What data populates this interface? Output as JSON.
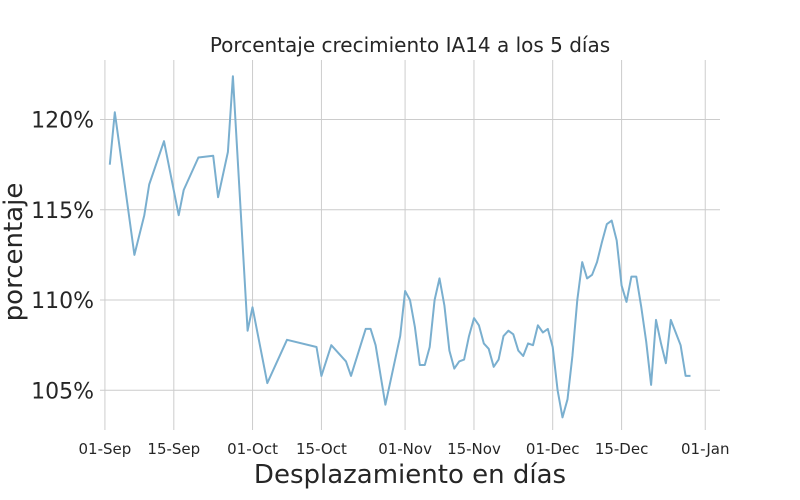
{
  "chart_data": {
    "type": "line",
    "title": "Porcentaje crecimiento IA14 a los 5 días",
    "xlabel": "Desplazamiento en días",
    "ylabel": "porcentaje",
    "grid": true,
    "legend": "none",
    "color": "#7aafcf",
    "xlim": [
      "2020-08-31",
      "2021-01-04"
    ],
    "ylim": [
      102.8,
      123.3
    ],
    "x_ticks": [
      {
        "date": "2020-09-01",
        "label": "01-Sep"
      },
      {
        "date": "2020-09-15",
        "label": "15-Sep"
      },
      {
        "date": "2020-10-01",
        "label": "01-Oct"
      },
      {
        "date": "2020-10-15",
        "label": "15-Oct"
      },
      {
        "date": "2020-11-01",
        "label": "01-Nov"
      },
      {
        "date": "2020-11-15",
        "label": "15-Nov"
      },
      {
        "date": "2020-12-01",
        "label": "01-Dec"
      },
      {
        "date": "2020-12-15",
        "label": "15-Dec"
      },
      {
        "date": "2021-01-01",
        "label": "01-Jan"
      }
    ],
    "y_ticks": [
      {
        "value": 105,
        "label": "105%"
      },
      {
        "value": 110,
        "label": "110%"
      },
      {
        "value": 115,
        "label": "115%"
      },
      {
        "value": 120,
        "label": "120%"
      }
    ],
    "series": [
      {
        "x": [
          "2020-09-02",
          "2020-09-03",
          "2020-09-07",
          "2020-09-09",
          "2020-09-10",
          "2020-09-13",
          "2020-09-16",
          "2020-09-17",
          "2020-09-20",
          "2020-09-23",
          "2020-09-24",
          "2020-09-26",
          "2020-09-27",
          "2020-09-30",
          "2020-10-01",
          "2020-10-04",
          "2020-10-08",
          "2020-10-14",
          "2020-10-15",
          "2020-10-17",
          "2020-10-20",
          "2020-10-21",
          "2020-10-24",
          "2020-10-25",
          "2020-10-26",
          "2020-10-28",
          "2020-10-31",
          "2020-11-01",
          "2020-11-02",
          "2020-11-03",
          "2020-11-04",
          "2020-11-05",
          "2020-11-06",
          "2020-11-07",
          "2020-11-08",
          "2020-11-09",
          "2020-11-10",
          "2020-11-11",
          "2020-11-12",
          "2020-11-13",
          "2020-11-14",
          "2020-11-15",
          "2020-11-16",
          "2020-11-17",
          "2020-11-18",
          "2020-11-19",
          "2020-11-20",
          "2020-11-21",
          "2020-11-22",
          "2020-11-23",
          "2020-11-24",
          "2020-11-25",
          "2020-11-26",
          "2020-11-27",
          "2020-11-28",
          "2020-11-29",
          "2020-11-30",
          "2020-12-01",
          "2020-12-02",
          "2020-12-03",
          "2020-12-04",
          "2020-12-05",
          "2020-12-06",
          "2020-12-07",
          "2020-12-08",
          "2020-12-09",
          "2020-12-10",
          "2020-12-11",
          "2020-12-12",
          "2020-12-13",
          "2020-12-14",
          "2020-12-15",
          "2020-12-16",
          "2020-12-17",
          "2020-12-18",
          "2020-12-19",
          "2020-12-20",
          "2020-12-21",
          "2020-12-22",
          "2020-12-23",
          "2020-12-24",
          "2020-12-25",
          "2020-12-26",
          "2020-12-27",
          "2020-12-28",
          "2020-12-29"
        ],
        "y": [
          117.5,
          120.4,
          112.5,
          114.7,
          116.4,
          118.8,
          114.7,
          116.1,
          117.9,
          118.0,
          115.7,
          118.2,
          122.4,
          108.3,
          109.6,
          105.4,
          107.8,
          107.4,
          105.8,
          107.5,
          106.6,
          105.8,
          108.4,
          108.4,
          107.5,
          104.2,
          108.0,
          110.5,
          110.0,
          108.5,
          106.4,
          106.4,
          107.4,
          110.0,
          111.2,
          109.7,
          107.2,
          106.2,
          106.6,
          106.7,
          108.0,
          109.0,
          108.6,
          107.6,
          107.3,
          106.3,
          106.7,
          108.0,
          108.3,
          108.1,
          107.2,
          106.9,
          107.6,
          107.5,
          108.6,
          108.2,
          108.4,
          107.4,
          105.0,
          103.5,
          104.5,
          106.9,
          110.0,
          112.1,
          111.2,
          111.4,
          112.1,
          113.2,
          114.2,
          114.4,
          113.3,
          110.8,
          109.9,
          111.3,
          111.3,
          109.6,
          107.7,
          105.3,
          108.9,
          107.6,
          106.5,
          108.9,
          108.2,
          107.5,
          105.8,
          105.8
        ]
      }
    ]
  }
}
